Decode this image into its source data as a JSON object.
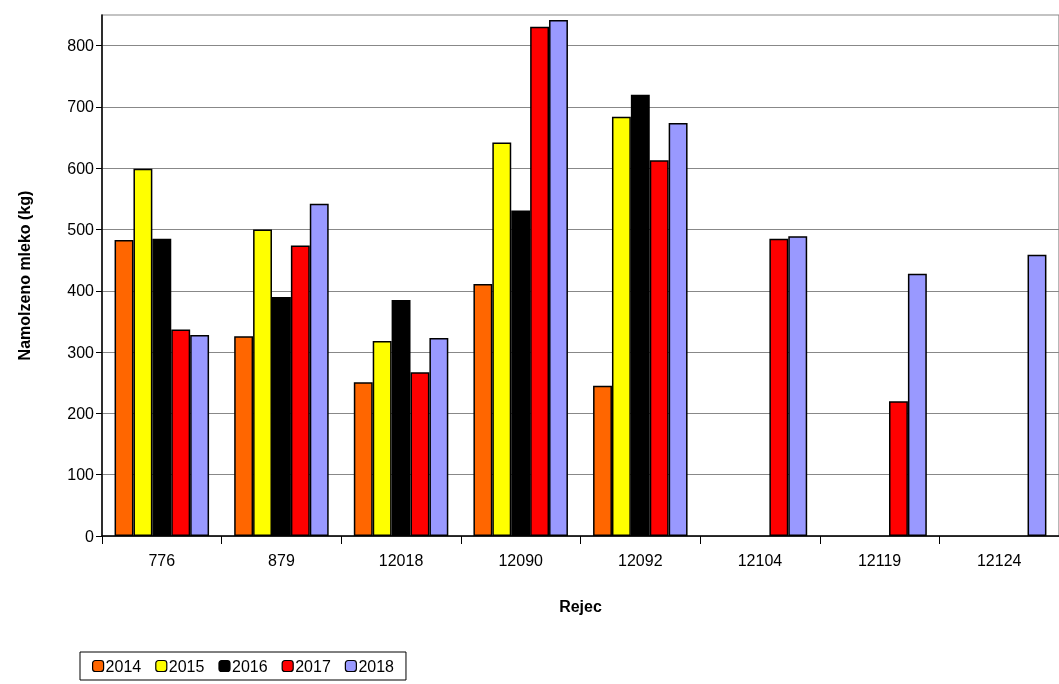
{
  "chart_data": {
    "type": "bar",
    "xlabel": "Rejec",
    "ylabel": "Namolzeno mleko (kg)",
    "categories": [
      "776",
      "879",
      "12018",
      "12090",
      "12092",
      "12104",
      "12119",
      "12124"
    ],
    "series": [
      {
        "name": "2014",
        "color": "#ff6600",
        "values": [
          483,
          326,
          251,
          411,
          245,
          null,
          null,
          null
        ]
      },
      {
        "name": "2015",
        "color": "#ffff00",
        "values": [
          599,
          500,
          318,
          642,
          684,
          null,
          null,
          null
        ]
      },
      {
        "name": "2016",
        "color": "#000000",
        "values": [
          485,
          390,
          385,
          531,
          720,
          null,
          null,
          null
        ]
      },
      {
        "name": "2017",
        "color": "#ff0000",
        "values": [
          337,
          474,
          267,
          831,
          613,
          485,
          220,
          null
        ]
      },
      {
        "name": "2018",
        "color": "#9999ff",
        "values": [
          328,
          542,
          323,
          842,
          674,
          489,
          428,
          459
        ]
      }
    ],
    "ylim": [
      0,
      850
    ],
    "yticks": [
      0,
      100,
      200,
      300,
      400,
      500,
      600,
      700,
      800
    ],
    "grid": "y",
    "legend": "bottom left"
  }
}
